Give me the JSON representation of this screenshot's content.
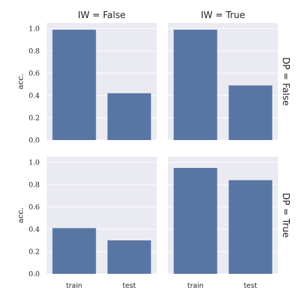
{
  "chart_data": {
    "type": "bar",
    "color": "#5975a4",
    "background": "#eaeaf2",
    "grid": true,
    "ylim": [
      0,
      1.0
    ],
    "yticks": [
      "0.0",
      "0.2",
      "0.4",
      "0.6",
      "0.8",
      "1.0"
    ],
    "categories": [
      "train",
      "test"
    ],
    "ylabel": "acc.",
    "col_titles": [
      "IW = False",
      "IW = True"
    ],
    "row_titles": [
      "DP = False",
      "DP = True"
    ],
    "panels": [
      {
        "row": 0,
        "col": 0,
        "values": [
          0.99,
          0.42
        ]
      },
      {
        "row": 0,
        "col": 1,
        "values": [
          0.99,
          0.49
        ]
      },
      {
        "row": 1,
        "col": 0,
        "values": [
          0.41,
          0.3
        ]
      },
      {
        "row": 1,
        "col": 1,
        "values": [
          0.95,
          0.84
        ]
      }
    ]
  }
}
